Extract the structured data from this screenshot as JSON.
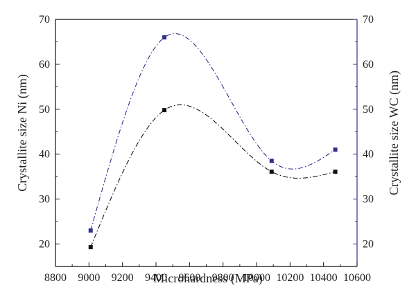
{
  "chart_data": {
    "type": "scatter",
    "xlabel": "Microhardness (MPa)",
    "ylabel_left": "Crystallite size Ni (nm)",
    "ylabel_right": "Crystallite size WC (nm)",
    "xlim": [
      8800,
      10600
    ],
    "ylim": [
      15,
      70
    ],
    "xticks": [
      "8800",
      "9000",
      "9200",
      "9400",
      "9600",
      "9800",
      "10000",
      "10200",
      "10400",
      "10600"
    ],
    "yticks": [
      "20",
      "30",
      "40",
      "50",
      "60",
      "70"
    ],
    "grid": false,
    "series": [
      {
        "axis": "left",
        "color": "#111111",
        "marker": "square",
        "line": "dash-dot fitted curve",
        "points": [
          [
            9010,
            19.3
          ],
          [
            9450,
            49.8
          ],
          [
            10090,
            36.1
          ],
          [
            10470,
            36.1
          ]
        ]
      },
      {
        "axis": "right",
        "color": "#2e2e8a",
        "marker": "square",
        "line": "dash-dot fitted curve",
        "points": [
          [
            9010,
            23.0
          ],
          [
            9450,
            66.0
          ],
          [
            10090,
            38.5
          ],
          [
            10470,
            41.0
          ]
        ]
      }
    ],
    "axis_colors": {
      "left": "#111111",
      "right": "#2e2e8a"
    }
  }
}
